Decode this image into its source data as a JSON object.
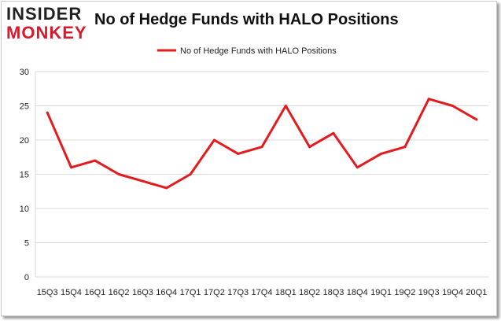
{
  "logo": {
    "line1": "INSIDER",
    "line2": "MONKEY"
  },
  "chart_data": {
    "type": "line",
    "title": "No of Hedge Funds with HALO Positions",
    "xlabel": "",
    "ylabel": "",
    "categories": [
      "15Q3",
      "15Q4",
      "16Q1",
      "16Q2",
      "16Q3",
      "16Q4",
      "17Q1",
      "17Q2",
      "17Q3",
      "17Q4",
      "18Q1",
      "18Q2",
      "18Q3",
      "18Q4",
      "19Q1",
      "19Q2",
      "19Q3",
      "19Q4",
      "20Q1"
    ],
    "series": [
      {
        "name": "No of Hedge Funds with HALO Positions",
        "values": [
          24,
          16,
          17,
          15,
          14,
          13,
          15,
          20,
          18,
          19,
          25,
          19,
          21,
          16,
          18,
          19,
          26,
          25,
          23
        ],
        "color": "#e41a1c"
      }
    ],
    "ylim": [
      0,
      30
    ],
    "yticks": [
      0,
      5,
      10,
      15,
      20,
      25,
      30
    ],
    "grid": true,
    "legend": "top-center"
  }
}
